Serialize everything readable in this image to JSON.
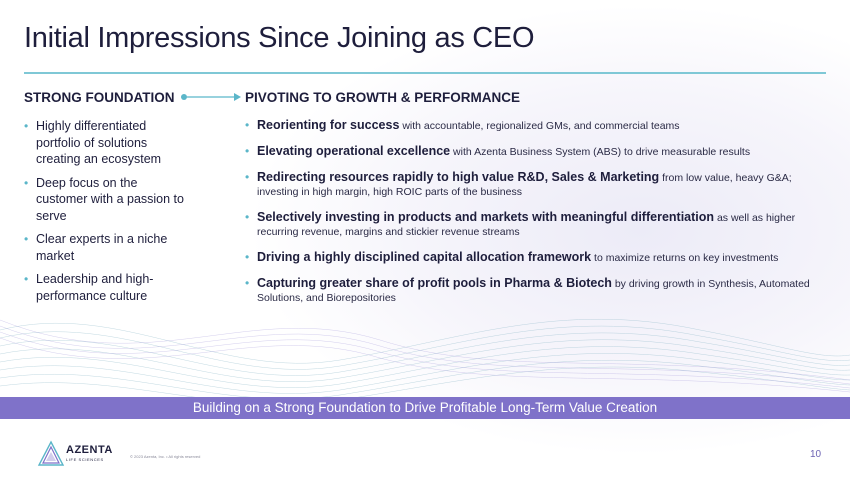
{
  "title": "Initial Impressions Since Joining as CEO",
  "left": {
    "heading": "STRONG FOUNDATION",
    "items": [
      "Highly differentiated portfolio of solutions creating an ecosystem",
      "Deep focus on the customer with a passion to serve",
      "Clear experts in a niche market",
      "Leadership and high-performance culture"
    ]
  },
  "right": {
    "heading": "PIVOTING TO GROWTH & PERFORMANCE",
    "items": [
      {
        "lead": "Reorienting for success",
        "rest": " with accountable, regionalized GMs, and commercial teams"
      },
      {
        "lead": "Elevating operational excellence",
        "rest": " with Azenta Business System (ABS) to drive measurable results"
      },
      {
        "lead": "Redirecting resources rapidly to high value R&D, Sales & Marketing",
        "rest": " from low value, heavy G&A; investing in high margin, high ROIC parts of the business"
      },
      {
        "lead": "Selectively investing in products and markets with meaningful differentiation",
        "rest": " as well as higher recurring revenue, margins and stickier revenue streams"
      },
      {
        "lead": "Driving a highly disciplined capital allocation framework",
        "rest": " to maximize returns on key investments"
      },
      {
        "lead": "Capturing greater share of profit pools in Pharma & Biotech",
        "rest": " by driving growth in Synthesis, Automated Solutions, and Biorepositories"
      }
    ]
  },
  "banner": "Building on a Strong Foundation to Drive Profitable Long-Term Value Creation",
  "footer": {
    "logo_name": "AZENTA",
    "logo_sub": "LIFE SCIENCES",
    "copyright": "© 2023 Azenta, Inc. • All rights reserved",
    "page_number": "10"
  },
  "colors": {
    "accent_teal": "#7fc8d6",
    "banner_purple": "#7f72c9",
    "bullet": "#5bb6c9",
    "text_dark": "#1e1e3c"
  }
}
